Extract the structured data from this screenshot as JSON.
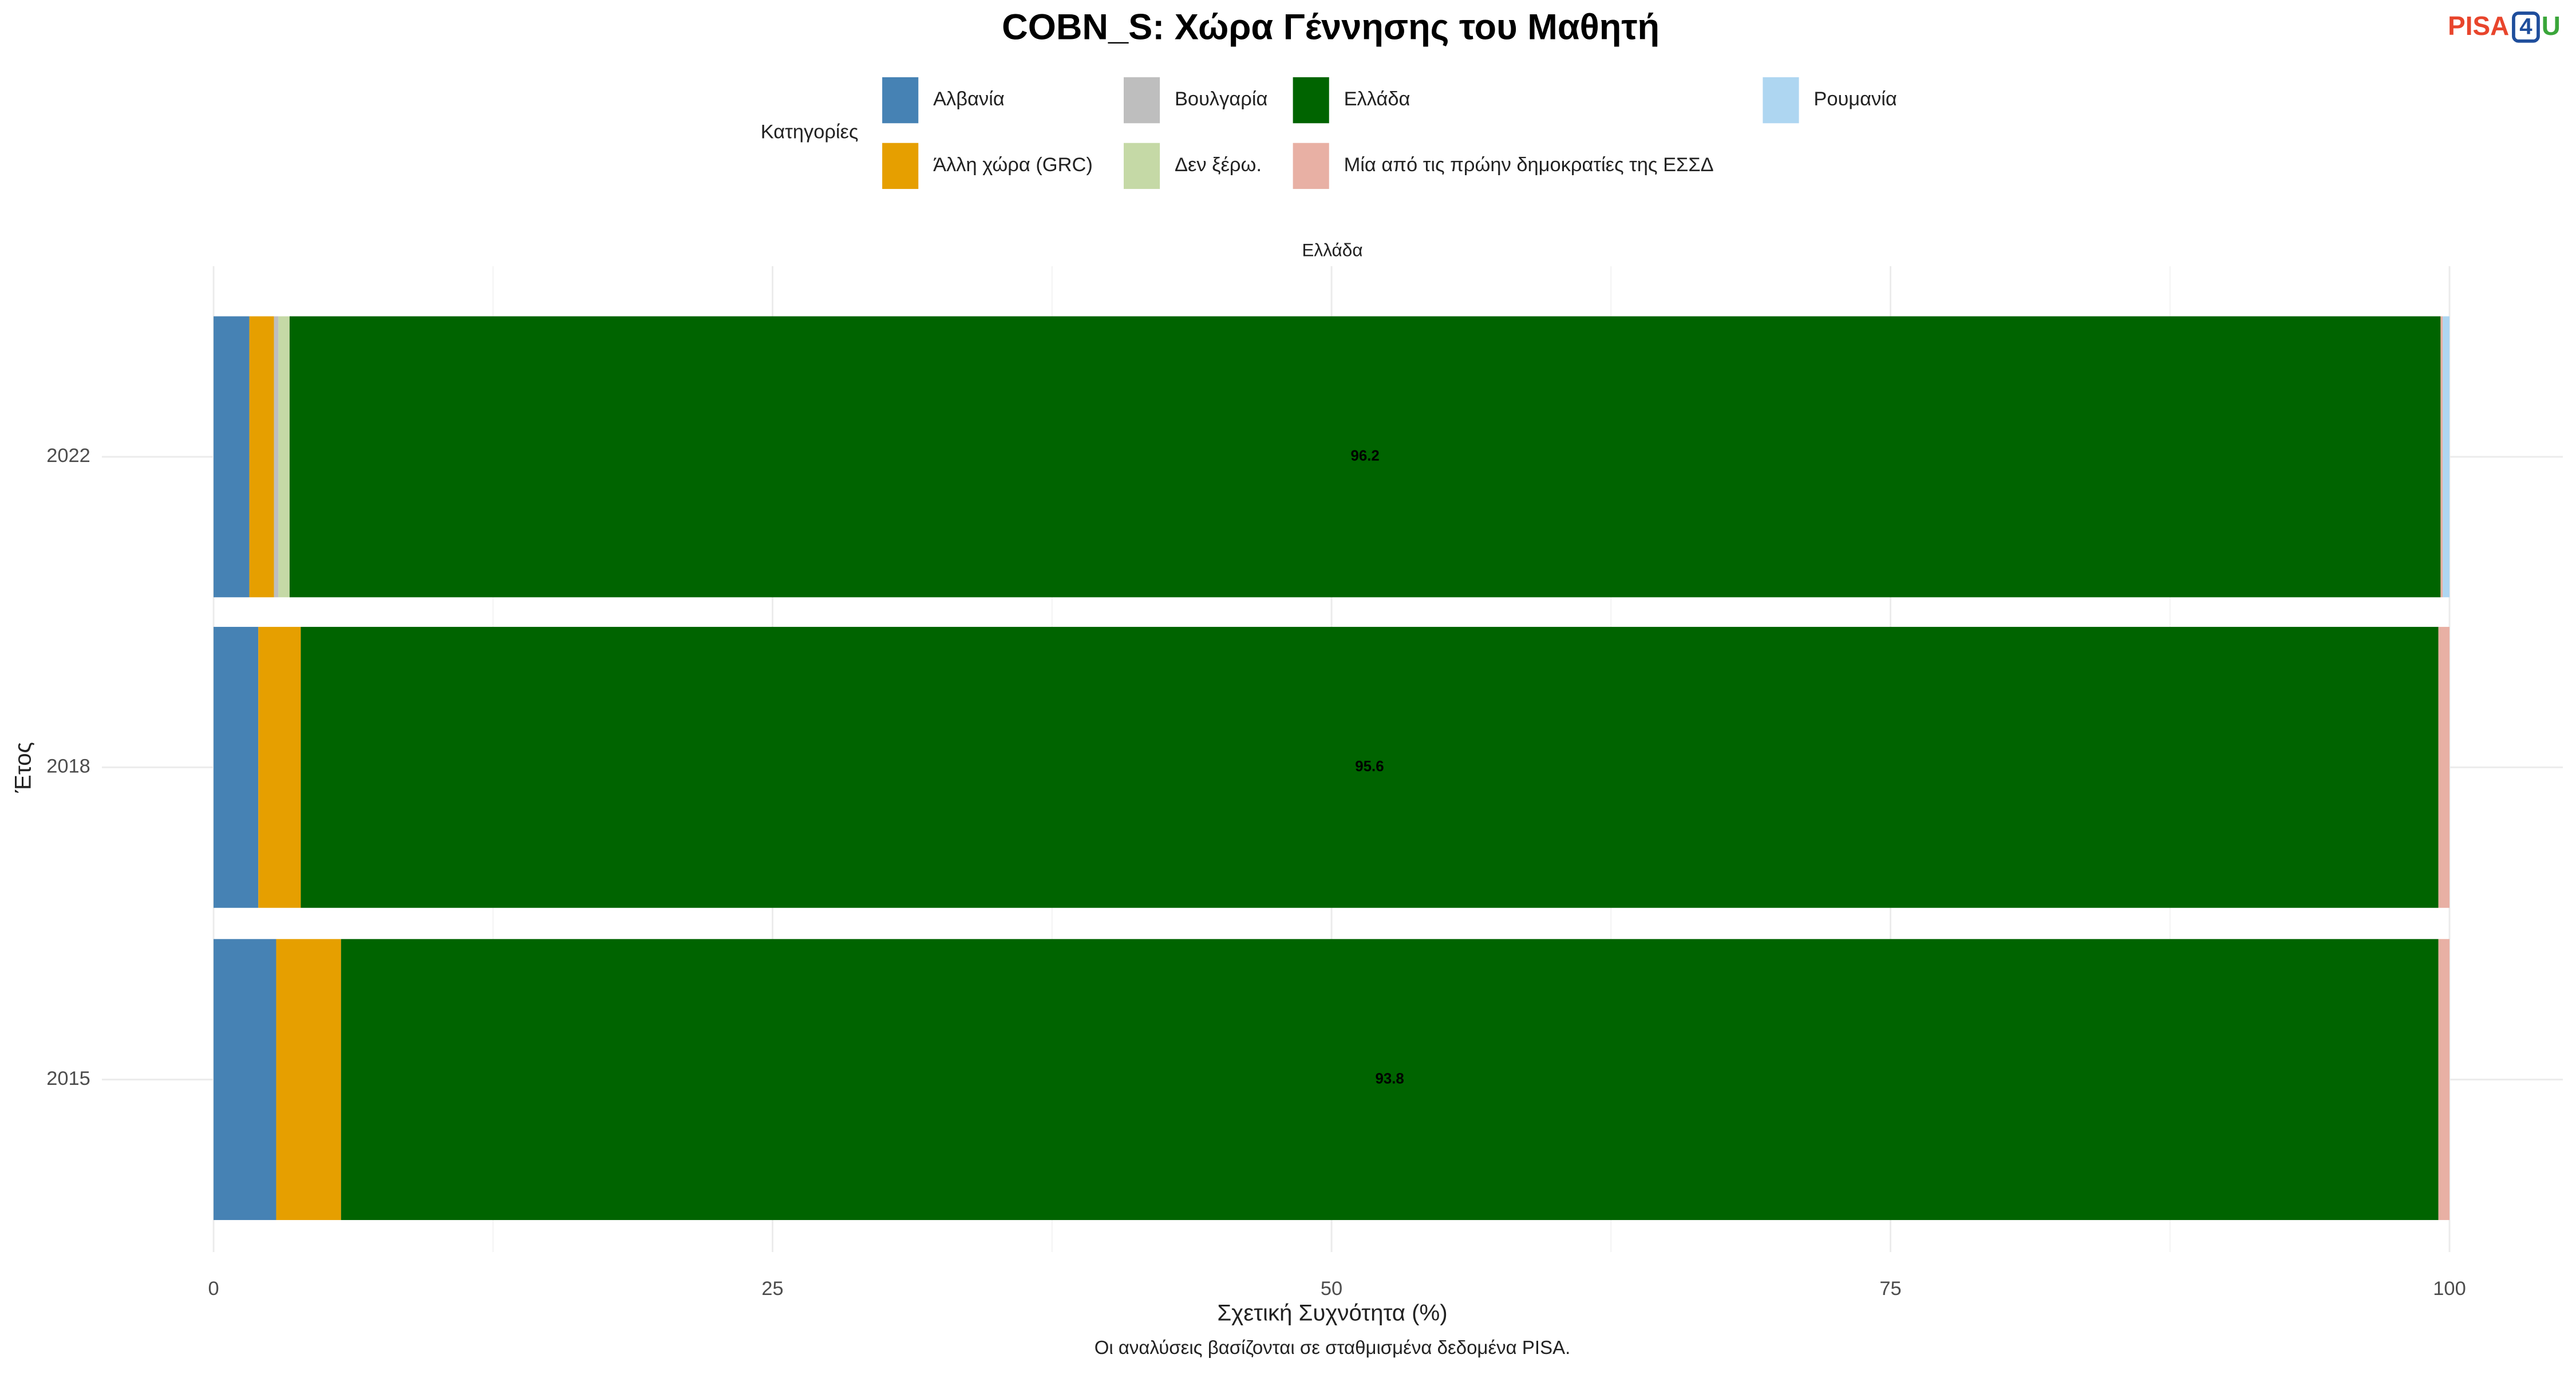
{
  "chart_data": {
    "type": "stacked_bar_horizontal",
    "title": "COBN_S: Χώρα Γέννησης του Μαθητή",
    "logo": {
      "left": "PISA",
      "box": "4",
      "right": "U"
    },
    "facet": "Ελλάδα",
    "legend_title": "Κατηγορίες",
    "legend_position": "top",
    "x_label": "Σχετική Συχνότητα (%)",
    "y_label": "Έτος",
    "caption": "Οι αναλύσεις βασίζονται σε σταθμισμένα δεδομένα PISA.",
    "categories": [
      "2022",
      "2018",
      "2015"
    ],
    "series": [
      {
        "name": "Αλβανία",
        "color": "#4682b4",
        "values": [
          1.6,
          2.0,
          2.8
        ]
      },
      {
        "name": "Άλλη χώρα (GRC)",
        "color": "#e69f00",
        "values": [
          1.1,
          1.9,
          2.9
        ]
      },
      {
        "name": "Βουλγαρία",
        "color": "#bebebe",
        "values": [
          0.2,
          null,
          null
        ]
      },
      {
        "name": "Δεν ξέρω.",
        "color": "#c5d9a6",
        "values": [
          0.5,
          null,
          null
        ]
      },
      {
        "name": "Ελλάδα",
        "color": "#006400",
        "values": [
          96.2,
          95.6,
          93.8
        ],
        "labels": true
      },
      {
        "name": "Μία από τις πρώην δημοκρατίες της ΕΣΣΔ",
        "color": "#e8b0a4",
        "values": [
          0.1,
          0.5,
          0.5
        ]
      },
      {
        "name": "Ρουμανία",
        "color": "#aed6f1",
        "values": [
          0.3,
          null,
          null
        ]
      }
    ],
    "xlim": [
      0,
      100
    ],
    "xticks": [
      0,
      25,
      50,
      75,
      100
    ],
    "grid": true
  }
}
